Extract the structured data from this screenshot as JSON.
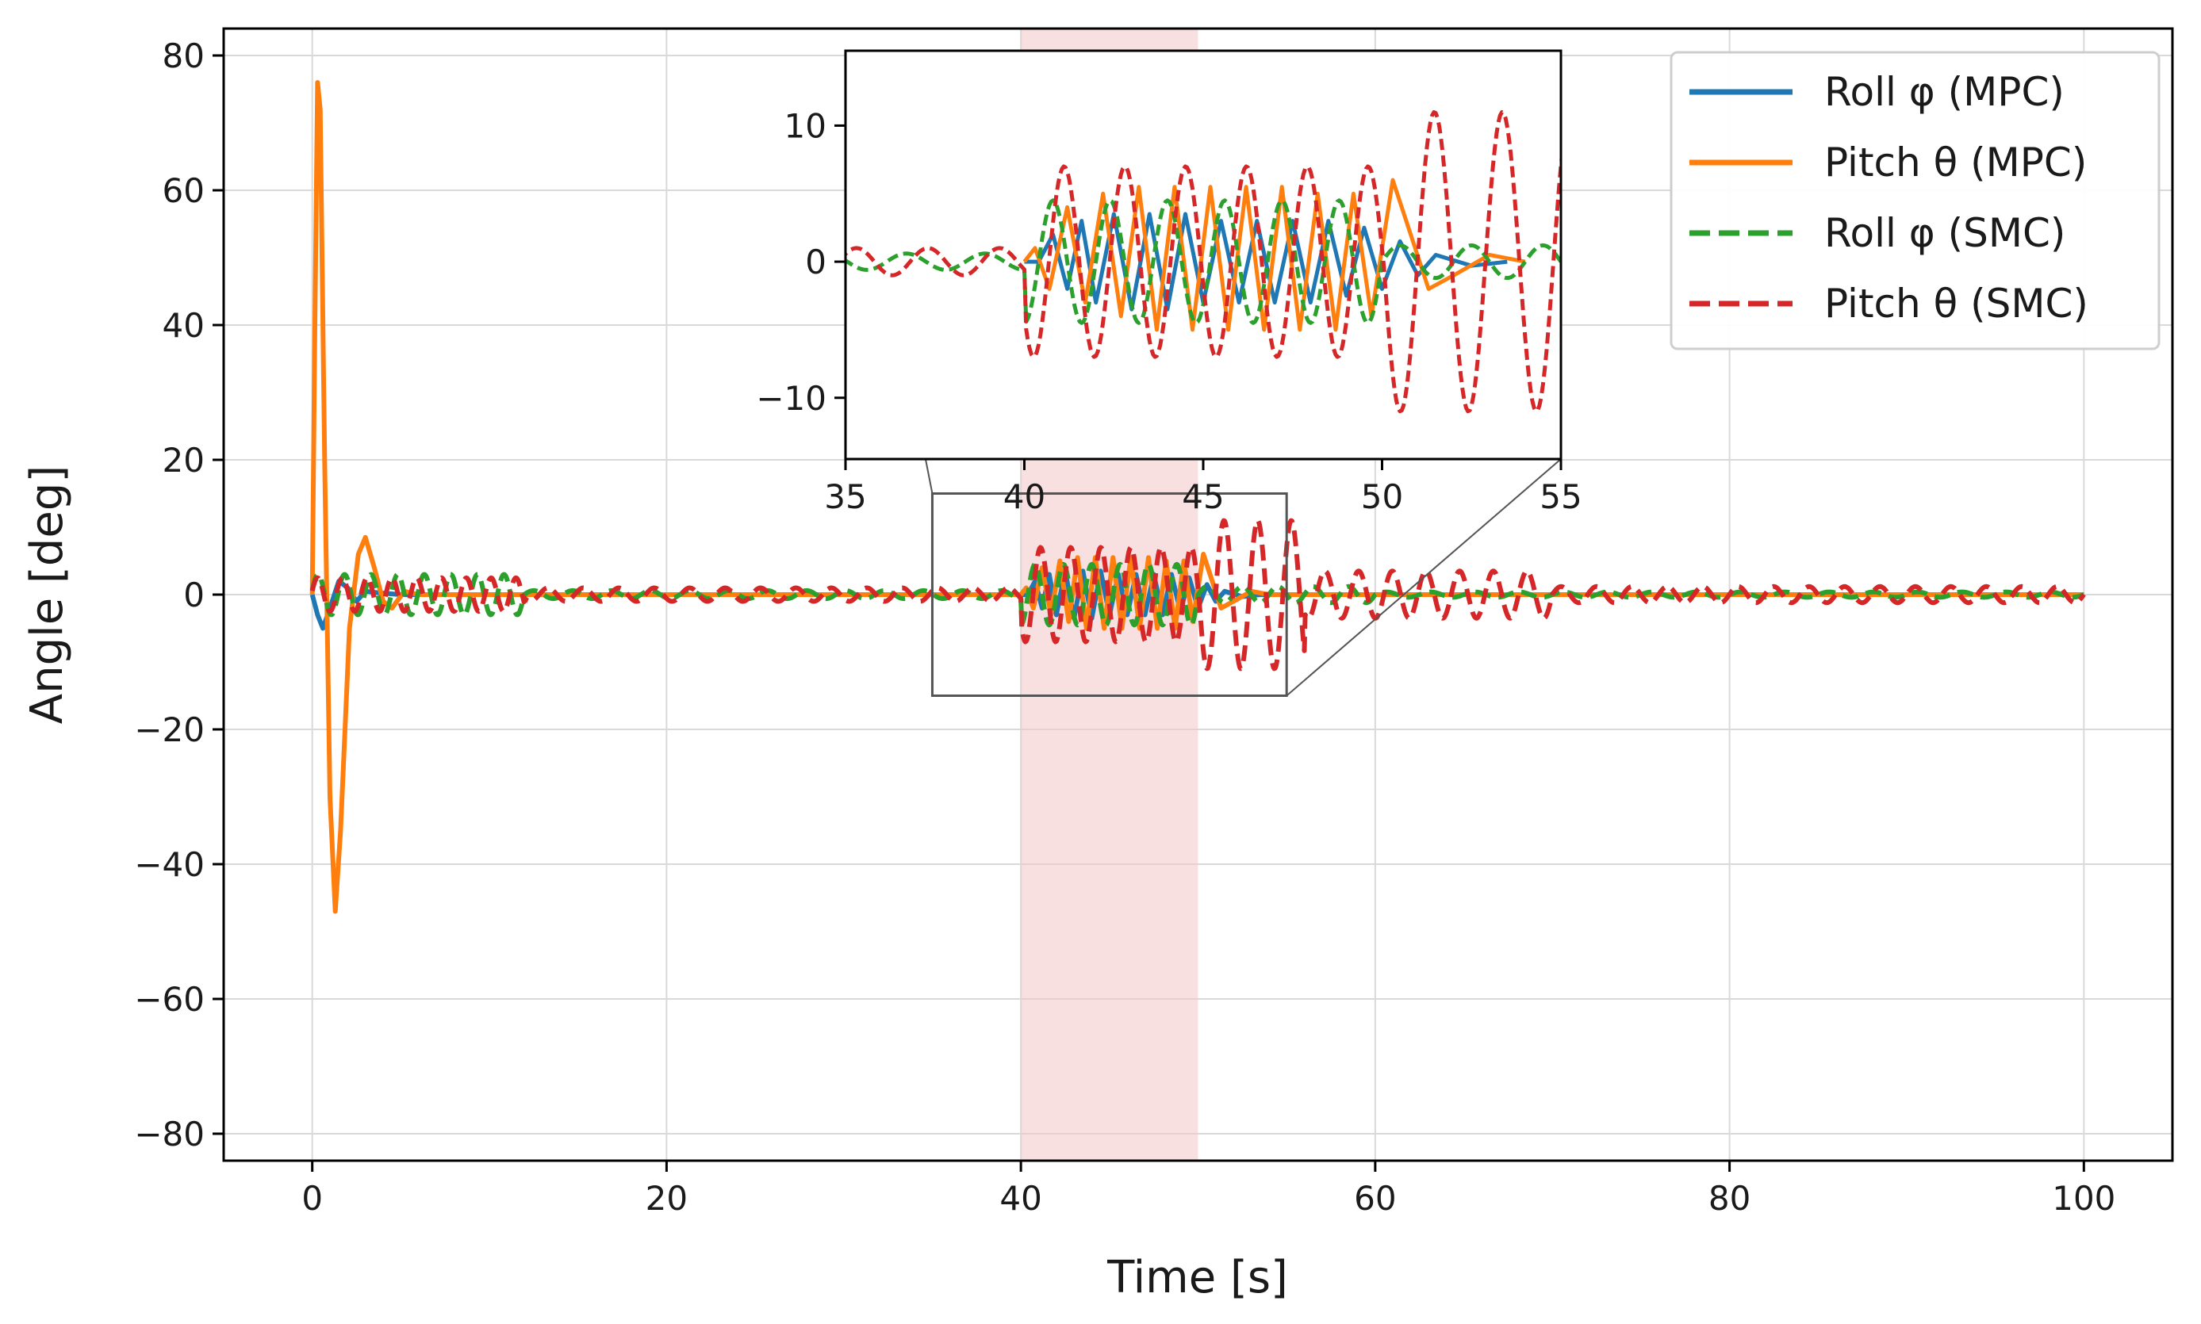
{
  "chart_data": {
    "type": "line",
    "xlabel": "Time [s]",
    "ylabel": "Angle [deg]",
    "xlim": [
      -5,
      105
    ],
    "ylim": [
      -84,
      84
    ],
    "xticks": [
      0,
      20,
      40,
      60,
      80,
      100
    ],
    "yticks": [
      -80,
      -60,
      -40,
      -20,
      0,
      20,
      40,
      60,
      80
    ],
    "xtick_labels": [
      "0",
      "20",
      "40",
      "60",
      "80",
      "100"
    ],
    "ytick_labels": [
      "−80",
      "−60",
      "−40",
      "−20",
      "0",
      "20",
      "40",
      "60",
      "80"
    ],
    "grid": true,
    "legend_position": "top-right",
    "highlight_region": {
      "x_start": 40,
      "x_end": 50,
      "color": "#f4c7c7"
    },
    "series": [
      {
        "name": "Roll φ (MPC)",
        "color": "#1f77b4",
        "style": "solid",
        "points": [
          [
            0,
            0
          ],
          [
            0.3,
            -3
          ],
          [
            0.6,
            -5
          ],
          [
            1.0,
            -2
          ],
          [
            1.5,
            2
          ],
          [
            2.0,
            1
          ],
          [
            2.5,
            -1
          ],
          [
            3,
            0.5
          ],
          [
            4,
            0.2
          ],
          [
            5,
            0
          ],
          [
            40,
            0
          ],
          [
            40.4,
            0
          ],
          [
            40.8,
            2
          ],
          [
            41.2,
            -2
          ],
          [
            41.6,
            3
          ],
          [
            42,
            -3
          ],
          [
            42.5,
            3.5
          ],
          [
            43,
            -3.5
          ],
          [
            43.5,
            3.5
          ],
          [
            44,
            -3.5
          ],
          [
            44.5,
            3.5
          ],
          [
            45,
            -3
          ],
          [
            45.5,
            3
          ],
          [
            46,
            -3
          ],
          [
            46.5,
            3
          ],
          [
            47,
            -3
          ],
          [
            47.5,
            3
          ],
          [
            48,
            -3
          ],
          [
            48.5,
            3
          ],
          [
            49,
            -2.5
          ],
          [
            49.5,
            2.5
          ],
          [
            50,
            -2
          ],
          [
            50.5,
            1.5
          ],
          [
            51,
            -1
          ],
          [
            51.5,
            0.5
          ],
          [
            52.5,
            -0.3
          ],
          [
            53.5,
            0
          ],
          [
            100,
            0
          ]
        ]
      },
      {
        "name": "Pitch θ (MPC)",
        "color": "#ff7f0e",
        "style": "solid",
        "points": [
          [
            0,
            0
          ],
          [
            0.15,
            40
          ],
          [
            0.3,
            76
          ],
          [
            0.45,
            72
          ],
          [
            0.7,
            20
          ],
          [
            1.0,
            -30
          ],
          [
            1.3,
            -47
          ],
          [
            1.6,
            -35
          ],
          [
            2.1,
            -5
          ],
          [
            2.6,
            6
          ],
          [
            3.0,
            8.5
          ],
          [
            3.5,
            4
          ],
          [
            4.0,
            -1
          ],
          [
            4.5,
            -2
          ],
          [
            5.2,
            0.5
          ],
          [
            6,
            0
          ],
          [
            40,
            0
          ],
          [
            40.3,
            1
          ],
          [
            40.7,
            -2
          ],
          [
            41.2,
            4
          ],
          [
            41.7,
            -3
          ],
          [
            42.2,
            5
          ],
          [
            42.7,
            -4
          ],
          [
            43.2,
            5.5
          ],
          [
            43.7,
            -5
          ],
          [
            44.2,
            5.5
          ],
          [
            44.7,
            -5
          ],
          [
            45.2,
            5.5
          ],
          [
            45.7,
            -5
          ],
          [
            46.2,
            5.5
          ],
          [
            46.7,
            -5
          ],
          [
            47.2,
            5.5
          ],
          [
            47.7,
            -5
          ],
          [
            48.2,
            5
          ],
          [
            48.7,
            -5
          ],
          [
            49.2,
            5
          ],
          [
            49.7,
            -4
          ],
          [
            50.3,
            6
          ],
          [
            50.8,
            2
          ],
          [
            51.3,
            -2
          ],
          [
            52,
            -1
          ],
          [
            53,
            0.5
          ],
          [
            54,
            0
          ],
          [
            100,
            0
          ]
        ]
      },
      {
        "name": "Roll φ (SMC)",
        "color": "#2ca02c",
        "style": "dashed",
        "osc": {
          "x_start": 0,
          "x_end": 100,
          "segments": [
            [
              0,
              12,
              3,
              1.5
            ],
            [
              12,
              40,
              0.6,
              2.2
            ],
            [
              40,
              50,
              4.5,
              1.6
            ],
            [
              50,
              60,
              1.2,
              2.0
            ],
            [
              60,
              100,
              0.4,
              2.5
            ]
          ]
        }
      },
      {
        "name": "Pitch θ (SMC)",
        "color": "#d62728",
        "style": "dashed",
        "osc": {
          "x_start": 0,
          "x_end": 100,
          "segments": [
            [
              0,
              12,
              2.5,
              1.4
            ],
            [
              12,
              40,
              1.0,
              2.0
            ],
            [
              40,
              50,
              7,
              1.7
            ],
            [
              50,
              56,
              11,
              1.9
            ],
            [
              56,
              70,
              3.5,
              1.9
            ],
            [
              70,
              100,
              1.2,
              2.0
            ]
          ]
        }
      }
    ],
    "inset": {
      "xlim": [
        35,
        55
      ],
      "ylim": [
        -14.5,
        15.5
      ],
      "xticks": [
        35,
        40,
        45,
        50,
        55
      ],
      "yticks": [
        -10,
        0,
        10
      ],
      "xtick_labels": [
        "35",
        "40",
        "45",
        "50",
        "55"
      ],
      "ytick_labels": [
        "−10",
        "0",
        "10"
      ],
      "zoom_box": {
        "x": [
          35,
          55
        ],
        "y": [
          -15,
          15
        ]
      }
    }
  },
  "legend": {
    "items": [
      {
        "label": "Roll φ (MPC)",
        "color": "#1f77b4",
        "style": "solid"
      },
      {
        "label": "Pitch θ (MPC)",
        "color": "#ff7f0e",
        "style": "solid"
      },
      {
        "label": "Roll φ (SMC)",
        "color": "#2ca02c",
        "style": "dashed"
      },
      {
        "label": "Pitch θ (SMC)",
        "color": "#d62728",
        "style": "dashed"
      }
    ]
  }
}
